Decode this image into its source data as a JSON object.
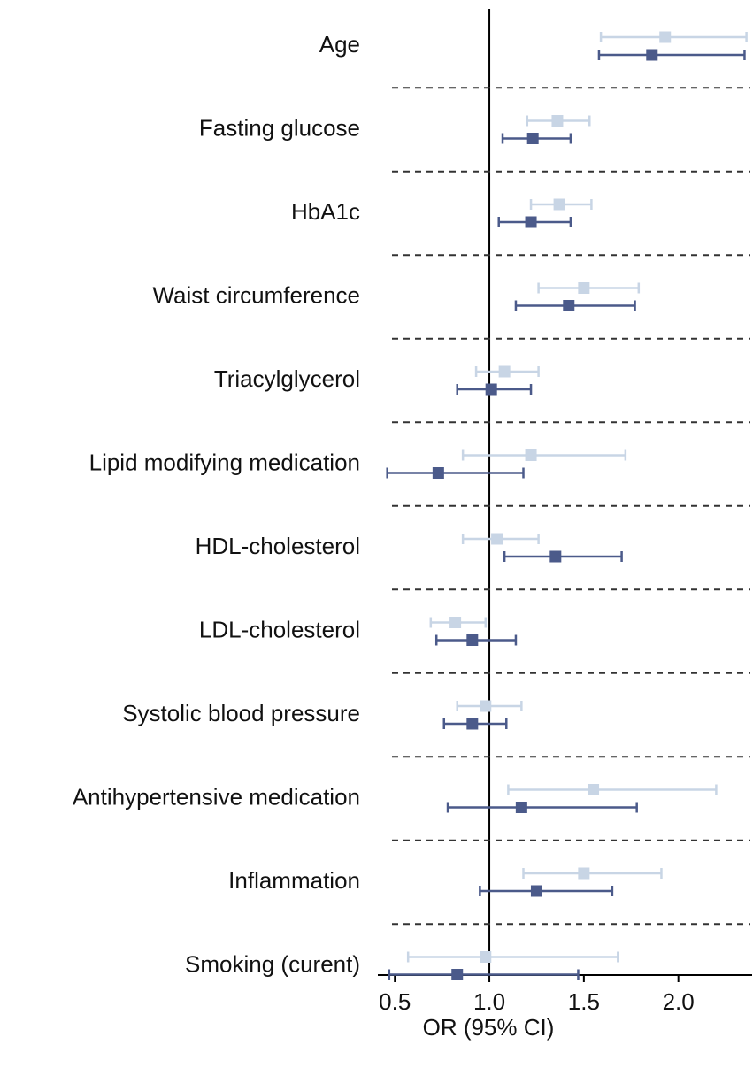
{
  "chart_data": {
    "type": "forest",
    "x_label": "OR (95% CI)",
    "categories": [
      "Age",
      "Fasting glucose",
      "HbA1c",
      "Waist circumference",
      "Triacylglycerol",
      "Lipid modifying medication",
      "HDL-cholesterol",
      "LDL-cholesterol",
      "Systolic blood pressure",
      "Antihypertensive medication",
      "Inflammation",
      "Smoking (curent)"
    ],
    "series": [
      {
        "color": "#c8d5e5",
        "values": [
          1.93,
          1.36,
          1.37,
          1.5,
          1.08,
          1.22,
          1.04,
          0.82,
          0.98,
          1.55,
          1.5,
          0.98
        ],
        "lower": [
          1.59,
          1.2,
          1.22,
          1.26,
          0.93,
          0.86,
          0.86,
          0.69,
          0.83,
          1.1,
          1.18,
          0.57
        ],
        "upper": [
          2.36,
          1.53,
          1.54,
          1.79,
          1.26,
          1.72,
          1.26,
          0.98,
          1.17,
          2.2,
          1.91,
          1.68
        ]
      },
      {
        "color": "#4b5a8a",
        "values": [
          1.86,
          1.23,
          1.22,
          1.42,
          1.01,
          0.73,
          1.35,
          0.91,
          0.91,
          1.17,
          1.25,
          0.83
        ],
        "lower": [
          1.58,
          1.07,
          1.05,
          1.14,
          0.83,
          0.46,
          1.08,
          0.72,
          0.76,
          0.78,
          0.95,
          0.47
        ],
        "upper": [
          2.35,
          1.43,
          1.43,
          1.77,
          1.22,
          1.18,
          1.7,
          1.14,
          1.09,
          1.78,
          1.65,
          1.47
        ]
      }
    ],
    "reference_line": 1,
    "xlim": [
      0.41,
      2.39
    ],
    "xticks": [
      0.5,
      {
        "value": 1,
        "label": "1.0"
      },
      1.5,
      {
        "value": 2,
        "label": "2.0"
      }
    ]
  }
}
